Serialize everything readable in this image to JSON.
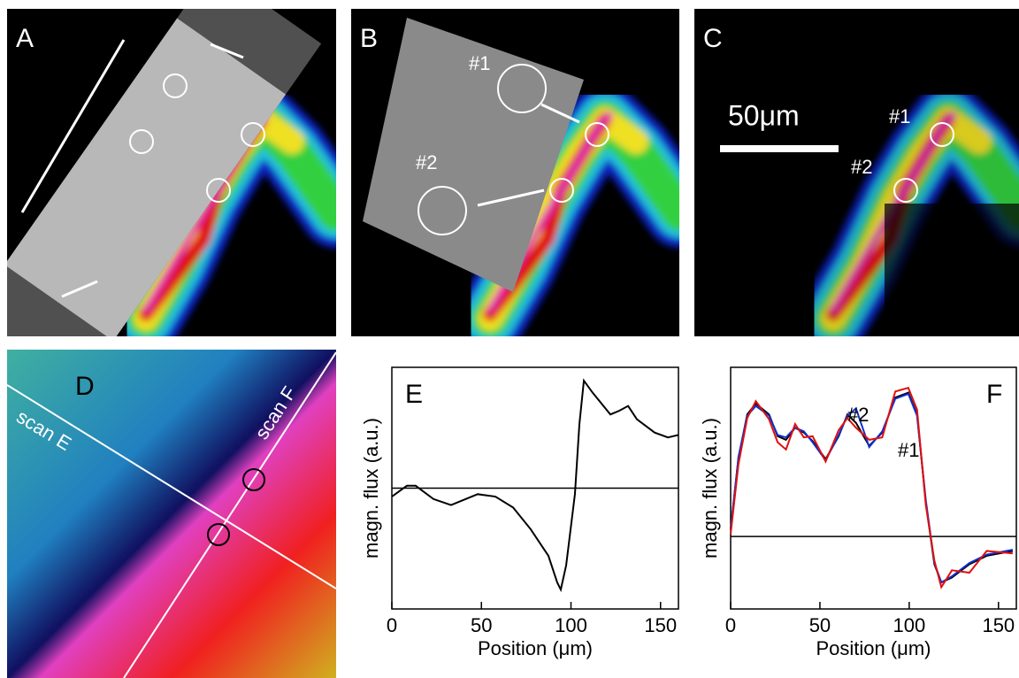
{
  "panels": {
    "A": {
      "label": "A"
    },
    "B": {
      "label": "B",
      "annotations": [
        "#1",
        "#2"
      ]
    },
    "C": {
      "label": "C",
      "scale_bar": "50μm",
      "annotations": [
        "#1",
        "#2"
      ]
    },
    "D": {
      "label": "D",
      "scans": [
        "scan E",
        "scan F"
      ]
    }
  },
  "chart_data": [
    {
      "type": "line",
      "label": "E",
      "x_label": "Position (μm)",
      "y_label": "magn. flux (a.u.)",
      "x": [
        0,
        8.4,
        13.3,
        23.2,
        33.1,
        47.9,
        57.8,
        67.7,
        77.5,
        87.4,
        92.3,
        94.3,
        97.3,
        102.2,
        104.7,
        107.2,
        112.1,
        122,
        126.9,
        131.9,
        136.8,
        146.7,
        154.1,
        160
      ],
      "series": [
        {
          "color": "#000000",
          "values": [
            -0.07,
            0.02,
            0.02,
            -0.09,
            -0.14,
            -0.05,
            -0.07,
            -0.16,
            -0.34,
            -0.56,
            -0.78,
            -0.84,
            -0.64,
            -0.05,
            0.53,
            0.89,
            0.79,
            0.61,
            0.64,
            0.68,
            0.57,
            0.46,
            0.42,
            0.44
          ]
        }
      ],
      "xlim": [
        0,
        160
      ],
      "xticks": [
        0,
        50,
        100,
        150
      ],
      "ylim": [
        -1,
        1
      ]
    },
    {
      "type": "line",
      "label": "F",
      "x_label": "Position (μm)",
      "y_label": "magn. flux (a.u.)",
      "annotations": [
        "#2",
        "#1"
      ],
      "x": [
        0,
        4.4,
        9.3,
        14.1,
        21.5,
        26.3,
        31,
        36.1,
        41,
        45.9,
        53.2,
        60.5,
        65.4,
        70.2,
        77.6,
        84.9,
        92.2,
        99.5,
        104.4,
        109.3,
        114.1,
        118,
        123.9,
        133.7,
        143.4,
        158
      ],
      "series": [
        {
          "color": "#000000",
          "values": [
            0.06,
            0.65,
            1.01,
            1.1,
            1.01,
            0.83,
            0.8,
            0.9,
            0.86,
            0.79,
            0.64,
            0.83,
            1.01,
            0.94,
            0.75,
            0.86,
            1.15,
            1.19,
            1.01,
            0.28,
            -0.23,
            -0.38,
            -0.34,
            -0.23,
            -0.16,
            -0.12
          ]
        },
        {
          "color": "#1030d0",
          "values": [
            0.05,
            0.66,
            1.0,
            1.08,
            1.0,
            0.84,
            0.82,
            0.9,
            0.87,
            0.78,
            0.63,
            0.84,
            1.0,
            1.06,
            0.74,
            0.87,
            1.14,
            1.18,
            1.0,
            0.3,
            -0.22,
            -0.38,
            -0.33,
            -0.22,
            -0.15,
            -0.11
          ]
        },
        {
          "color": "#e01010",
          "values": [
            0.02,
            0.6,
            0.98,
            1.12,
            0.97,
            0.78,
            0.72,
            0.93,
            0.82,
            0.83,
            0.62,
            0.88,
            0.98,
            0.9,
            0.8,
            0.82,
            1.2,
            1.23,
            1.05,
            0.26,
            -0.2,
            -0.42,
            -0.28,
            -0.3,
            -0.12,
            -0.14
          ]
        }
      ],
      "xlim": [
        0,
        160
      ],
      "xticks": [
        0,
        50,
        100,
        150
      ],
      "ylim": [
        -0.6,
        1.4
      ]
    }
  ]
}
